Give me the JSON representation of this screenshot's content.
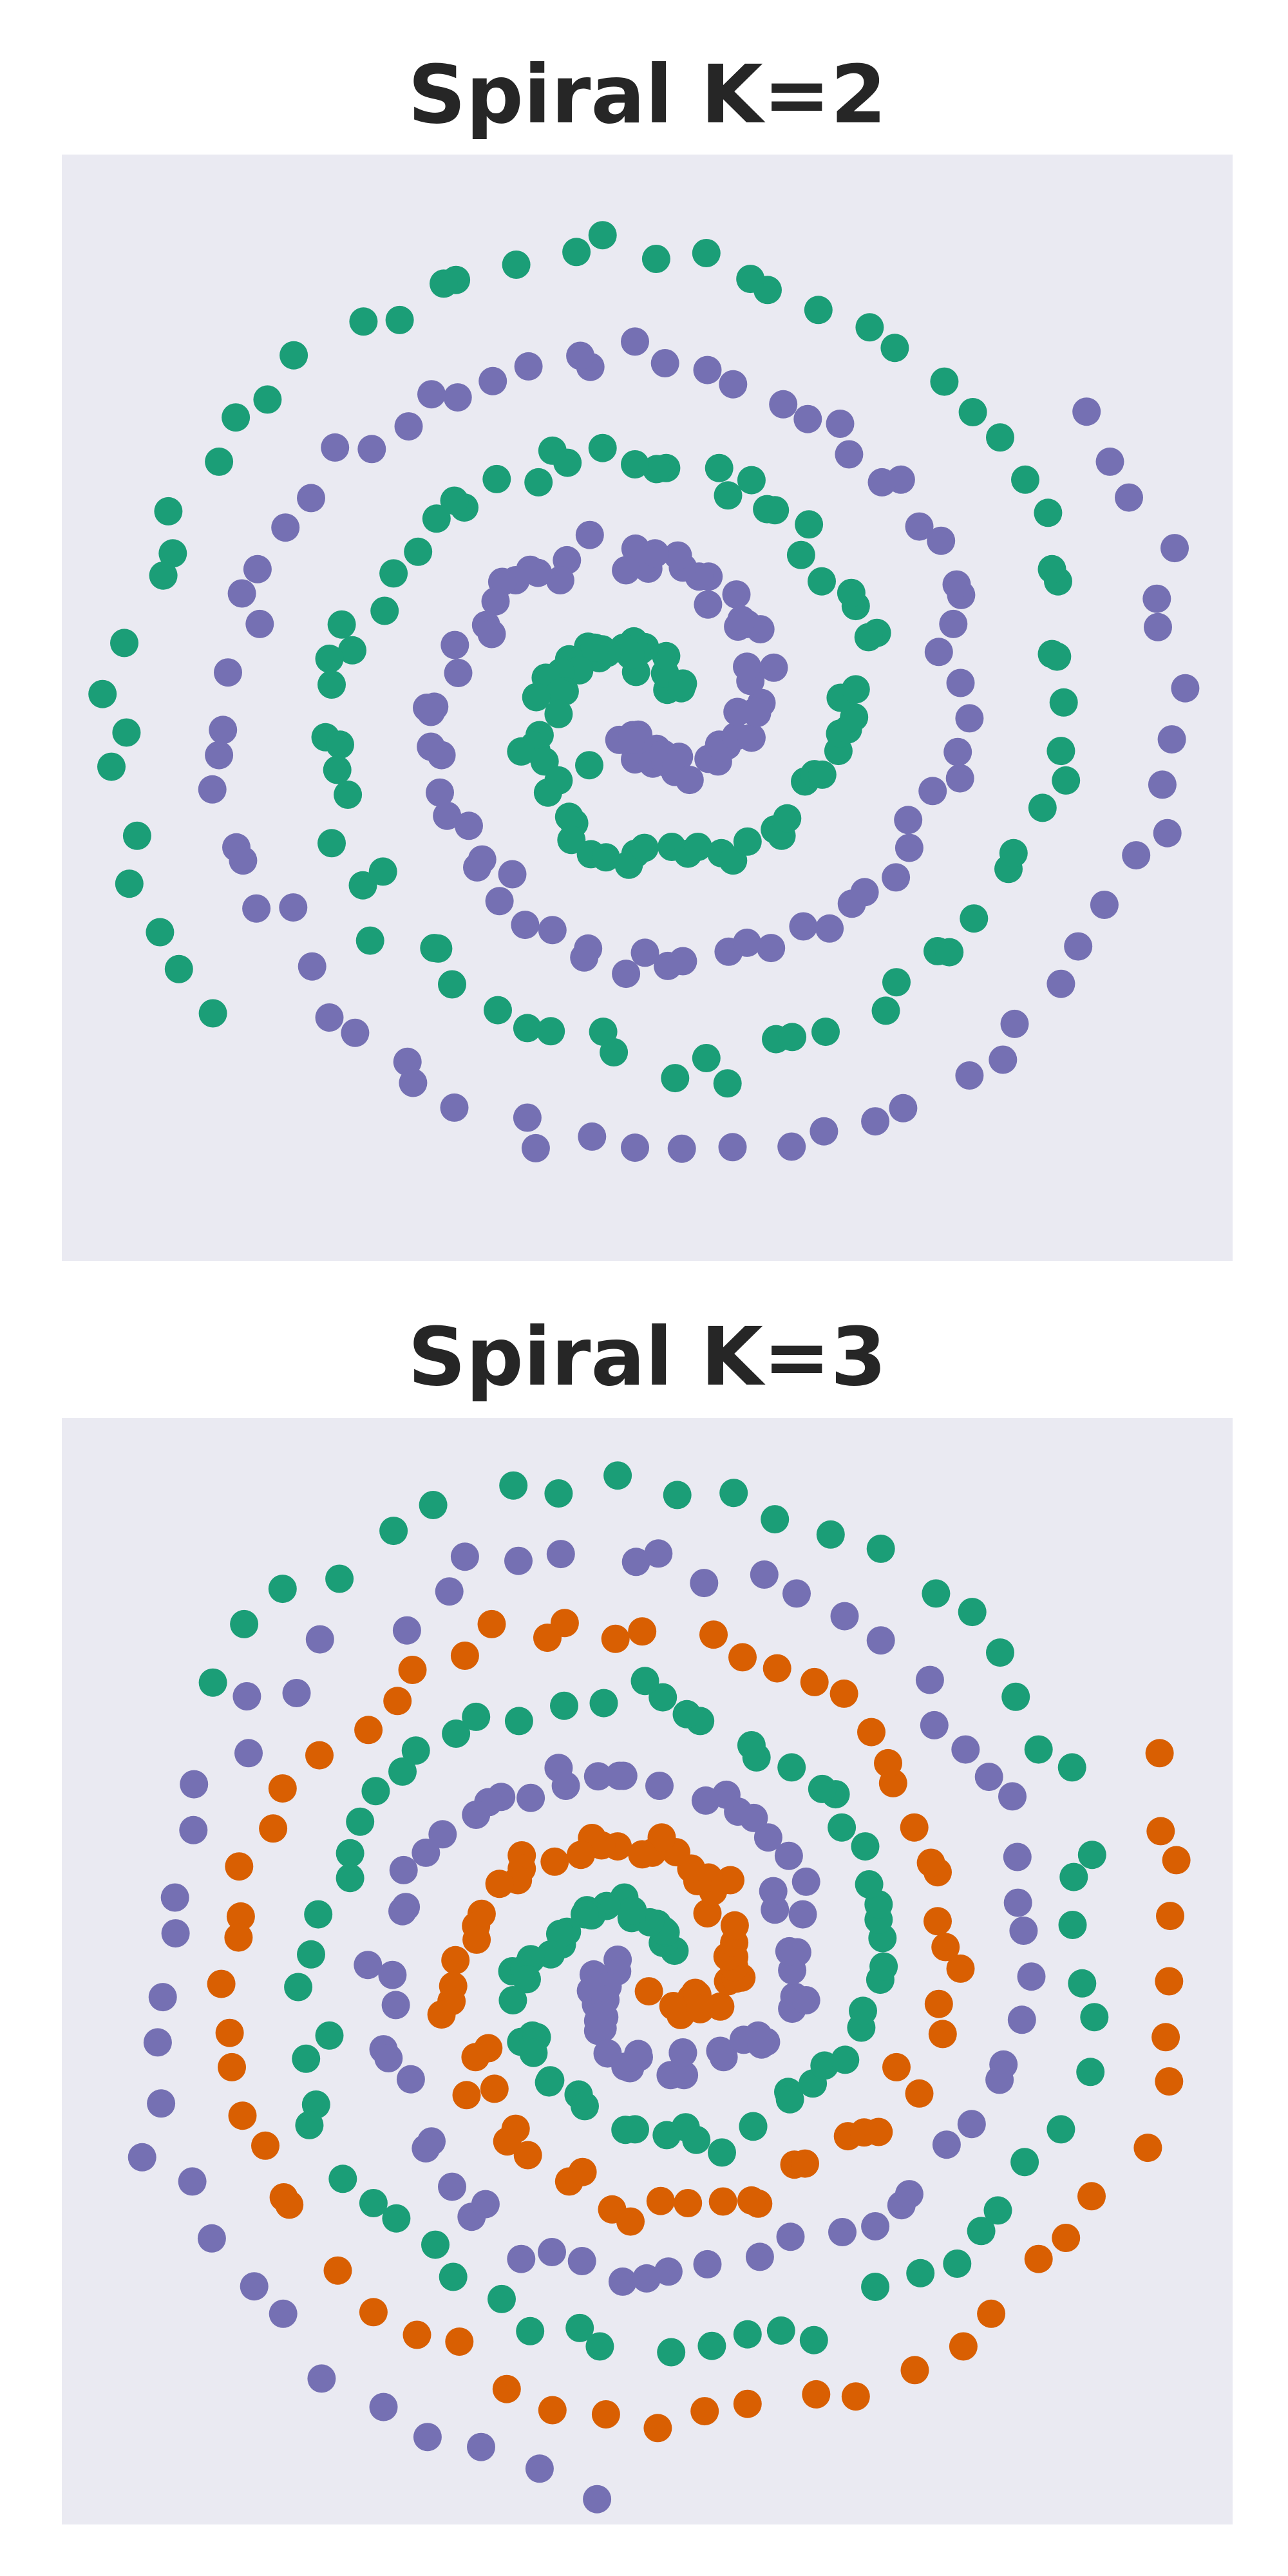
{
  "chart_data": [
    {
      "type": "scatter",
      "title": "Spiral K=2",
      "xlim": [
        -1.05,
        1.05
      ],
      "ylim": [
        -1.05,
        1.05
      ],
      "grid": false,
      "legend": "none",
      "series": [
        {
          "color": "#1b9e77",
          "points": []
        },
        {
          "color": "#7570b3",
          "points": []
        }
      ]
    },
    {
      "type": "scatter",
      "title": "Spiral K=3",
      "xlim": [
        -1.05,
        1.05
      ],
      "ylim": [
        -1.05,
        1.05
      ],
      "grid": false,
      "legend": "none",
      "series": [
        {
          "color": "#1b9e77",
          "points": []
        },
        {
          "color": "#7570b3",
          "points": []
        },
        {
          "color": "#d95f02",
          "points": []
        }
      ]
    }
  ]
}
